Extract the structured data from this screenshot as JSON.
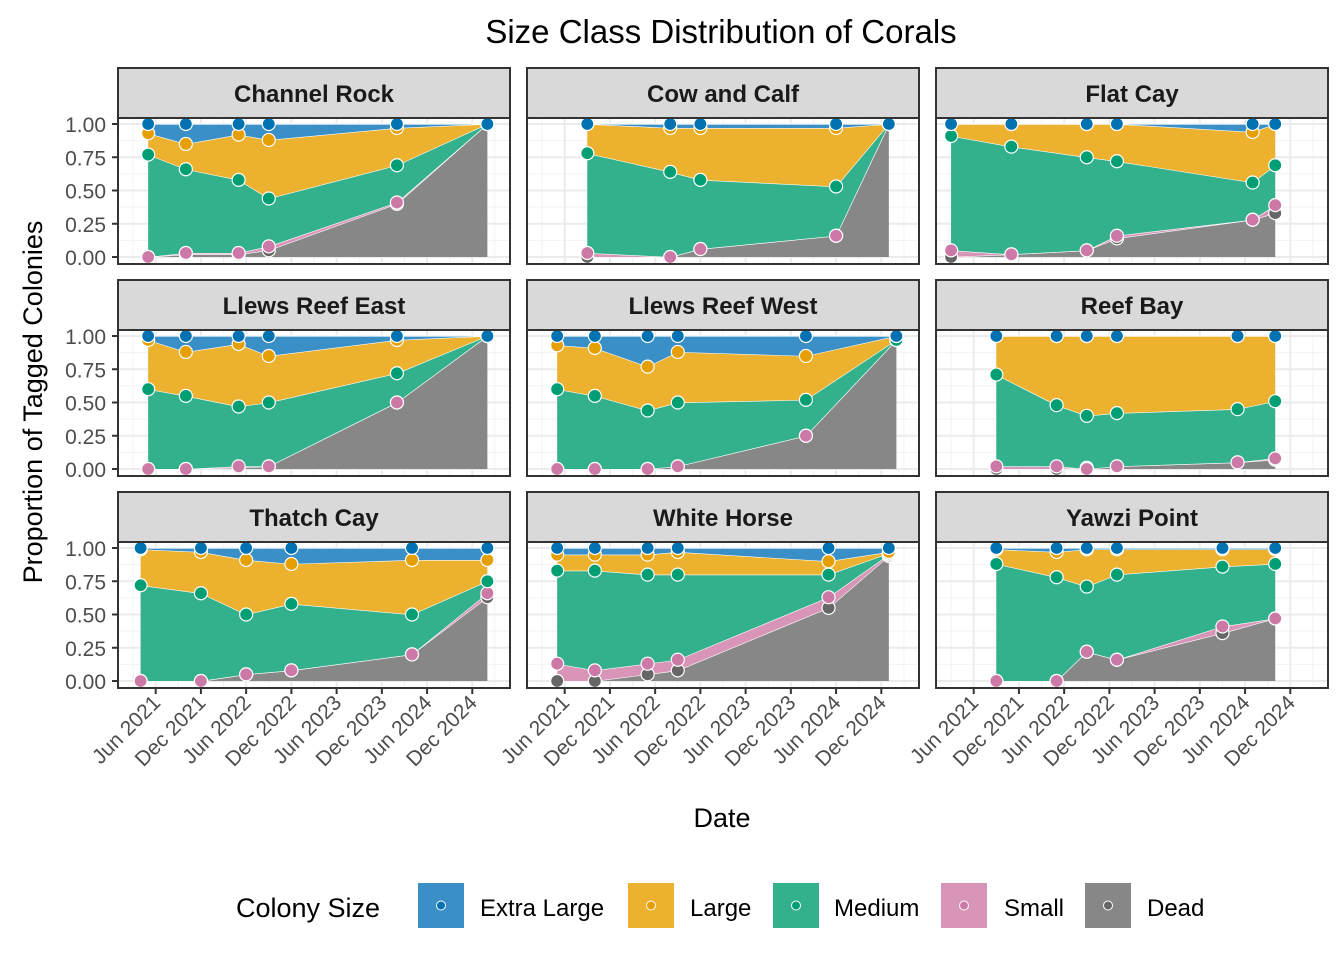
{
  "chart_data": {
    "type": "area",
    "title": "Size Class Distribution of Corals",
    "xlabel": "Date",
    "ylabel": "Proportion of Tagged Colonies",
    "ylim": [
      0,
      1
    ],
    "yticks": [
      "0.00",
      "0.25",
      "0.50",
      "0.75",
      "1.00"
    ],
    "xticks": [
      "Jun 2021",
      "Dec 2021",
      "Jun 2022",
      "Dec 2022",
      "Jun 2023",
      "Dec 2023",
      "Jun 2024",
      "Dec 2024"
    ],
    "xrange_months_from_jun2021": [
      -5,
      47
    ],
    "grid": true,
    "stacking_order_bottom_to_top": [
      "Dead",
      "Small",
      "Medium",
      "Large",
      "Extra Large"
    ],
    "legend": {
      "title": "Colony Size",
      "position": "bottom",
      "entries": [
        {
          "name": "Extra Large",
          "fill": "#3a8fc6",
          "point": "#0072b2"
        },
        {
          "name": "Large",
          "fill": "#ecb12f",
          "point": "#e69f00"
        },
        {
          "name": "Medium",
          "fill": "#33b08c",
          "point": "#009e73"
        },
        {
          "name": "Small",
          "fill": "#d895b8",
          "point": "#cc79a7"
        },
        {
          "name": "Dead",
          "fill": "#878787",
          "point": "#666666"
        }
      ]
    },
    "panels": [
      {
        "site": "Channel Rock",
        "dates": [
          "2021-05",
          "2021-10",
          "2022-05",
          "2022-09",
          "2024-02",
          "2025-02"
        ],
        "cumulative": {
          "Dead": [
            0.0,
            0.02,
            0.02,
            0.05,
            0.4,
            1.0
          ],
          "Small": [
            0.0,
            0.03,
            0.03,
            0.08,
            0.41,
            1.0
          ],
          "Medium": [
            0.77,
            0.66,
            0.58,
            0.44,
            0.69,
            1.0
          ],
          "Large": [
            0.93,
            0.85,
            0.92,
            0.88,
            0.97,
            1.0
          ],
          "Extra Large": [
            1.0,
            1.0,
            1.0,
            1.0,
            1.0,
            1.0
          ]
        }
      },
      {
        "site": "Cow and Calf",
        "dates": [
          "2021-09",
          "2022-08",
          "2022-12",
          "2024-06",
          "2025-01"
        ],
        "cumulative": {
          "Dead": [
            0.0,
            0.0,
            0.06,
            0.16,
            1.0
          ],
          "Small": [
            0.03,
            0.0,
            0.06,
            0.16,
            1.0
          ],
          "Medium": [
            0.78,
            0.64,
            0.58,
            0.53,
            1.0
          ],
          "Large": [
            1.0,
            0.97,
            0.97,
            0.97,
            1.0
          ],
          "Extra Large": [
            1.0,
            1.0,
            1.0,
            1.0,
            1.0
          ]
        }
      },
      {
        "site": "Flat Cay",
        "dates": [
          "2021-03",
          "2021-11",
          "2022-09",
          "2023-01",
          "2024-07",
          "2024-10"
        ],
        "cumulative": {
          "Dead": [
            0.0,
            0.02,
            0.05,
            0.14,
            0.28,
            0.33
          ],
          "Small": [
            0.05,
            0.02,
            0.05,
            0.16,
            0.28,
            0.39
          ],
          "Medium": [
            0.91,
            0.83,
            0.75,
            0.72,
            0.56,
            0.69
          ],
          "Large": [
            1.0,
            1.0,
            1.0,
            1.0,
            0.94,
            1.0
          ],
          "Extra Large": [
            1.0,
            1.0,
            1.0,
            1.0,
            1.0,
            1.0
          ]
        }
      },
      {
        "site": "Llews Reef East",
        "dates": [
          "2021-05",
          "2021-10",
          "2022-05",
          "2022-09",
          "2024-02",
          "2025-02"
        ],
        "cumulative": {
          "Dead": [
            0.0,
            0.0,
            0.01,
            0.02,
            0.5,
            1.0
          ],
          "Small": [
            0.0,
            0.0,
            0.02,
            0.02,
            0.5,
            1.0
          ],
          "Medium": [
            0.6,
            0.55,
            0.47,
            0.5,
            0.72,
            1.0
          ],
          "Large": [
            0.97,
            0.88,
            0.94,
            0.85,
            0.97,
            1.0
          ],
          "Extra Large": [
            1.0,
            1.0,
            1.0,
            1.0,
            1.0,
            1.0
          ]
        }
      },
      {
        "site": "Llews Reef West",
        "dates": [
          "2021-05",
          "2021-10",
          "2022-05",
          "2022-09",
          "2024-02",
          "2025-02"
        ],
        "cumulative": {
          "Dead": [
            0.0,
            0.0,
            0.0,
            0.02,
            0.25,
            0.97
          ],
          "Small": [
            0.0,
            0.0,
            0.0,
            0.02,
            0.25,
            0.97
          ],
          "Medium": [
            0.6,
            0.55,
            0.44,
            0.5,
            0.52,
            0.97
          ],
          "Large": [
            0.93,
            0.91,
            0.77,
            0.88,
            0.85,
            1.0
          ],
          "Extra Large": [
            1.0,
            1.0,
            1.0,
            1.0,
            1.0,
            1.0
          ]
        }
      },
      {
        "site": "Reef Bay",
        "dates": [
          "2021-09",
          "2022-05",
          "2022-09",
          "2023-01",
          "2024-05",
          "2024-10"
        ],
        "cumulative": {
          "Dead": [
            0.0,
            0.0,
            0.01,
            0.02,
            0.05,
            0.07
          ],
          "Small": [
            0.02,
            0.02,
            0.0,
            0.02,
            0.05,
            0.08
          ],
          "Medium": [
            0.71,
            0.48,
            0.4,
            0.42,
            0.45,
            0.51
          ],
          "Large": [
            1.0,
            1.0,
            1.0,
            1.0,
            1.0,
            1.0
          ],
          "Extra Large": [
            1.0,
            1.0,
            1.0,
            1.0,
            1.0,
            1.0
          ]
        }
      },
      {
        "site": "Thatch Cay",
        "dates": [
          "2021-04",
          "2021-12",
          "2022-06",
          "2022-12",
          "2024-04",
          "2025-02"
        ],
        "cumulative": {
          "Dead": [
            0.0,
            0.0,
            0.05,
            0.08,
            0.2,
            0.63
          ],
          "Small": [
            0.0,
            0.0,
            0.05,
            0.08,
            0.2,
            0.66
          ],
          "Medium": [
            0.72,
            0.66,
            0.5,
            0.58,
            0.5,
            0.75
          ],
          "Large": [
            0.99,
            0.97,
            0.91,
            0.88,
            0.91,
            0.91
          ],
          "Extra Large": [
            1.0,
            1.0,
            1.0,
            1.0,
            1.0,
            1.0
          ]
        }
      },
      {
        "site": "White Horse",
        "dates": [
          "2021-05",
          "2021-10",
          "2022-05",
          "2022-09",
          "2024-05",
          "2025-01"
        ],
        "cumulative": {
          "Dead": [
            0.0,
            0.0,
            0.05,
            0.08,
            0.55,
            0.94
          ],
          "Small": [
            0.13,
            0.08,
            0.13,
            0.16,
            0.63,
            0.95
          ],
          "Medium": [
            0.83,
            0.83,
            0.8,
            0.8,
            0.8,
            0.96
          ],
          "Large": [
            0.95,
            0.95,
            0.95,
            0.97,
            0.9,
            0.97
          ],
          "Extra Large": [
            1.0,
            1.0,
            1.0,
            1.0,
            1.0,
            1.0
          ]
        }
      },
      {
        "site": "Yawzi Point",
        "dates": [
          "2021-09",
          "2022-05",
          "2022-09",
          "2023-01",
          "2024-03",
          "2024-10"
        ],
        "cumulative": {
          "Dead": [
            0.0,
            0.0,
            0.22,
            0.16,
            0.36,
            0.47
          ],
          "Small": [
            0.0,
            0.0,
            0.22,
            0.16,
            0.41,
            0.47
          ],
          "Medium": [
            0.88,
            0.78,
            0.71,
            0.8,
            0.86,
            0.88
          ],
          "Large": [
            0.99,
            0.97,
            0.99,
            0.99,
            0.99,
            0.99
          ],
          "Extra Large": [
            1.0,
            1.0,
            1.0,
            1.0,
            1.0,
            1.0
          ]
        }
      }
    ]
  }
}
